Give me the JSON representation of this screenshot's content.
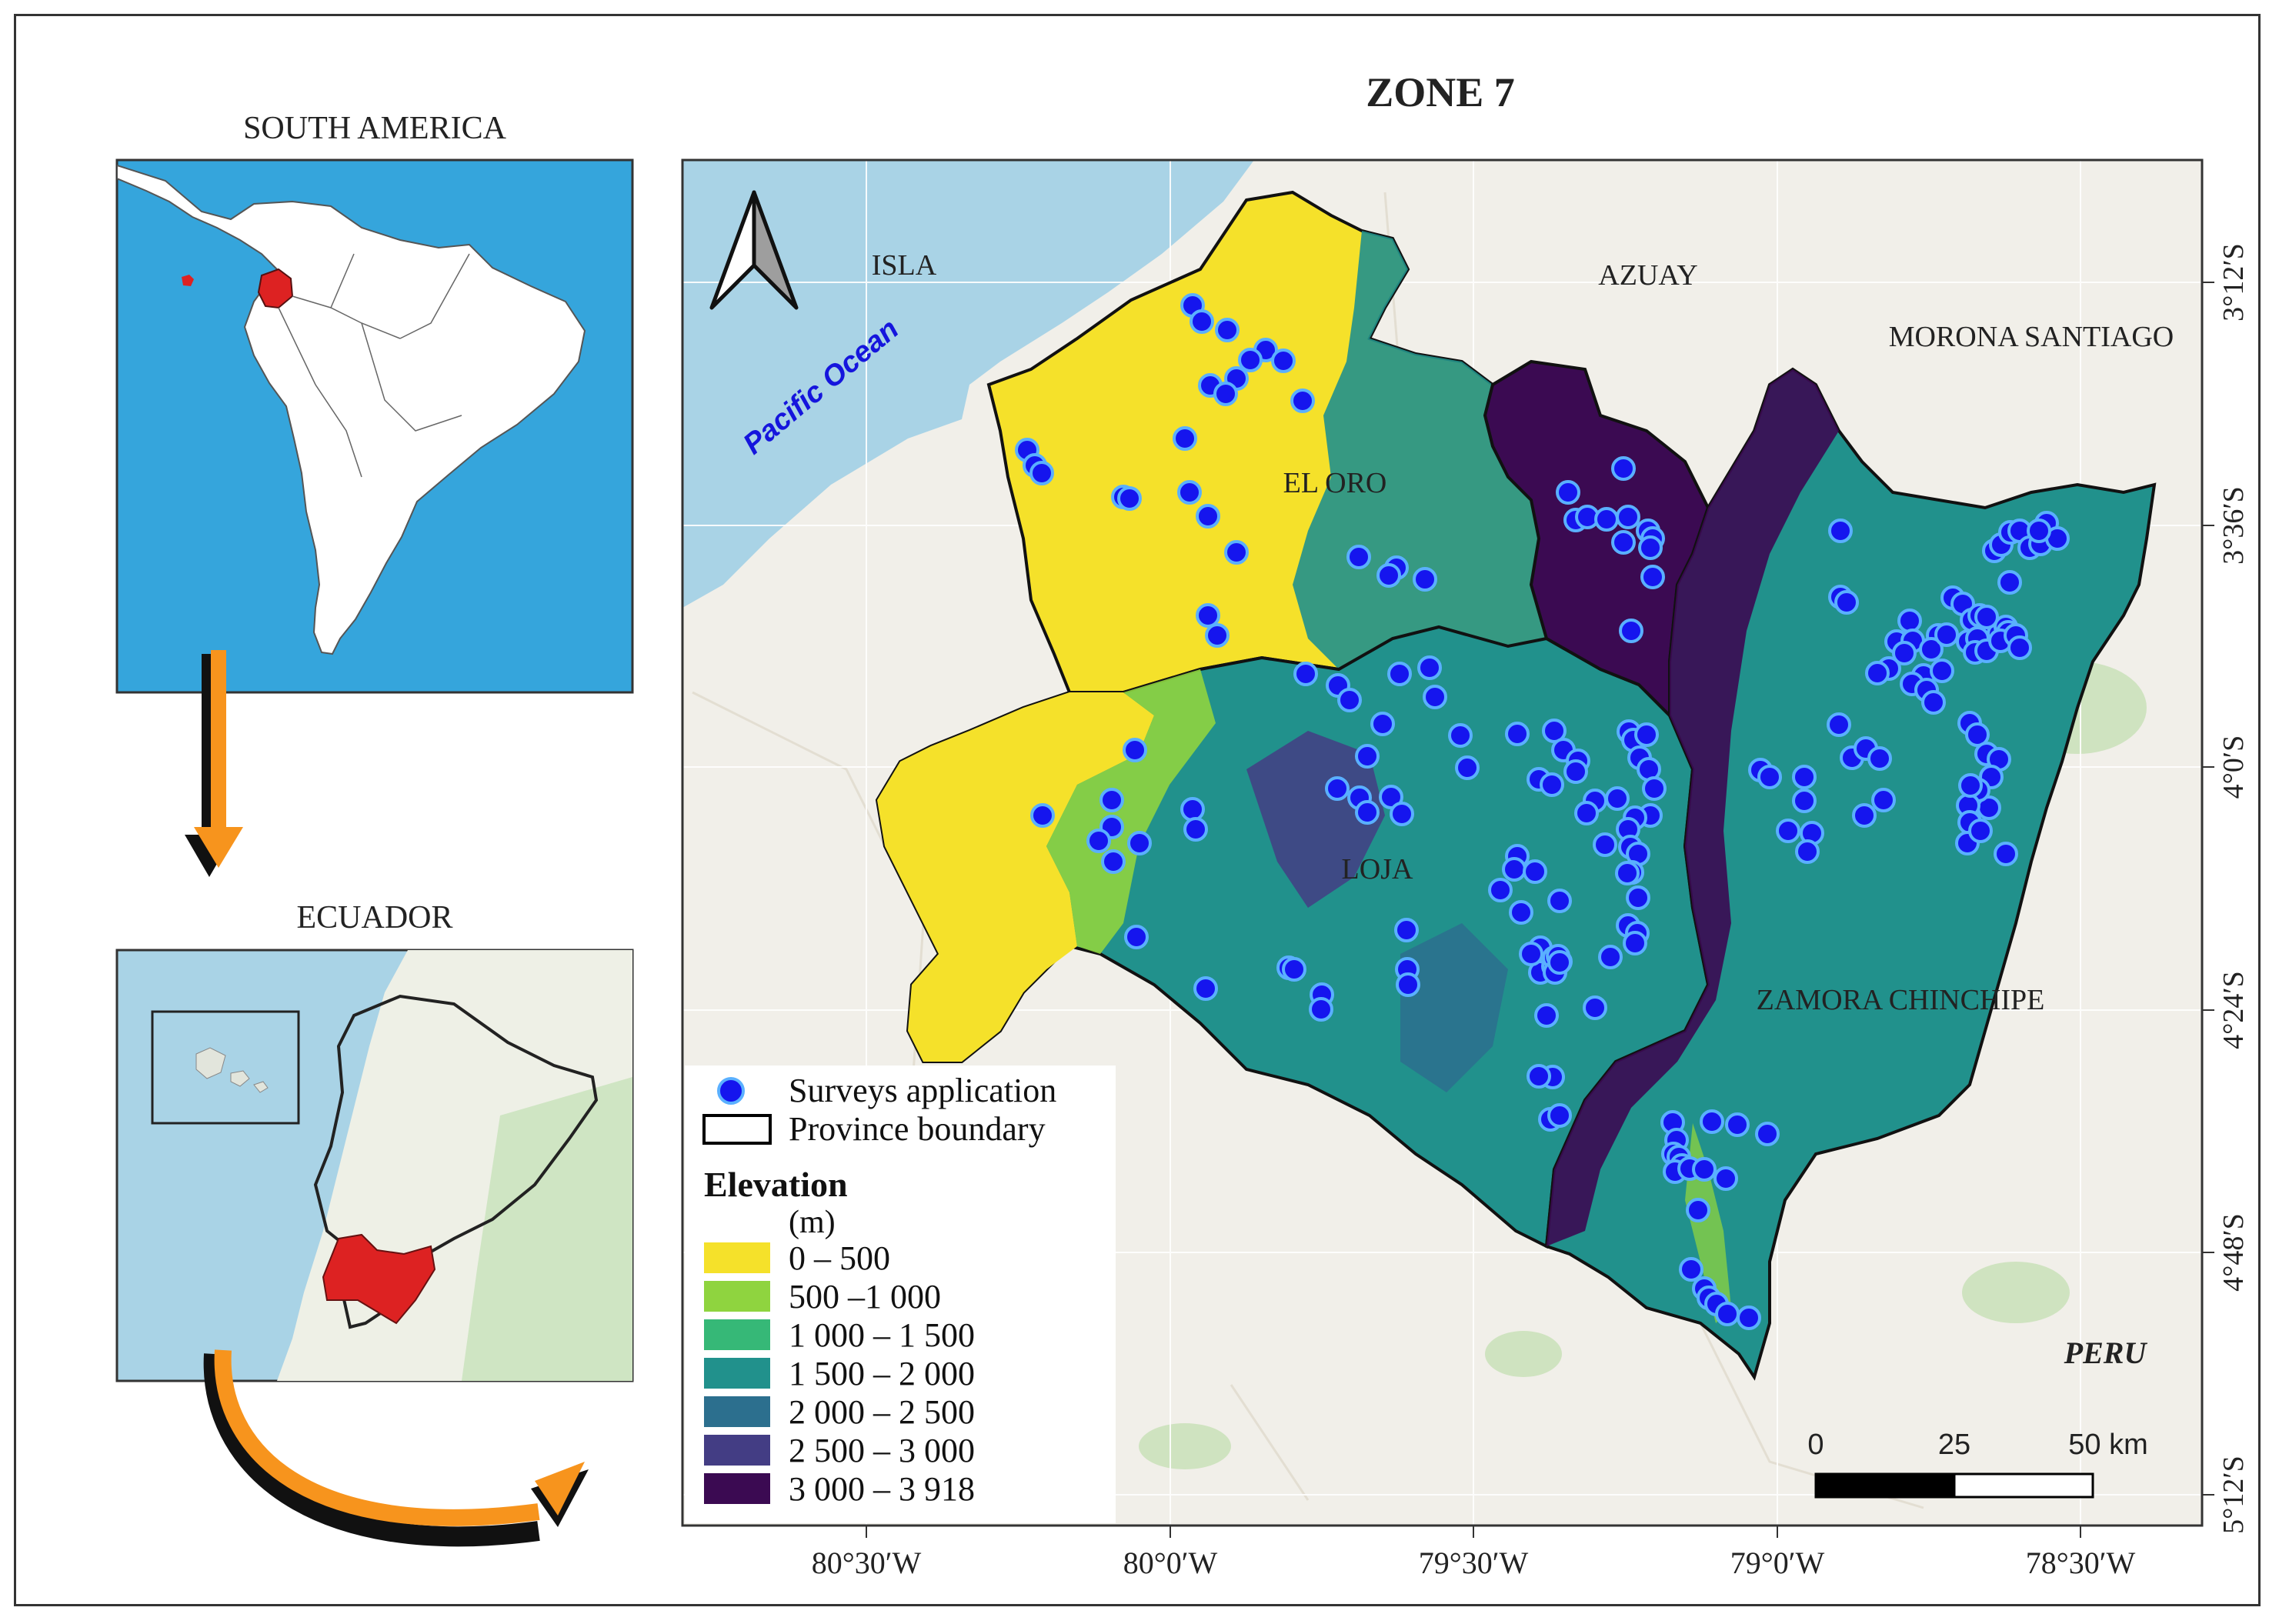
{
  "title": "ZONE 7",
  "inset_south_america": {
    "title": "SOUTH AMERICA"
  },
  "inset_ecuador": {
    "title": "ECUADOR"
  },
  "map_labels": {
    "isla": "ISLA",
    "azuay": "AZUAY",
    "morona_santiago": "MORONA SANTIAGO",
    "el_oro": "EL ORO",
    "loja": "LOJA",
    "zamora_chinchipe": "ZAMORA CHINCHIPE",
    "peru": "PERU",
    "pacific_ocean": "Pacific Ocean"
  },
  "lat_ticks": [
    "3°12′S",
    "3°36′S",
    "4°0′S",
    "4°24′S",
    "4°48′S",
    "5°12′S"
  ],
  "lon_ticks": [
    "80°30′W",
    "80°0′W",
    "79°30′W",
    "79°0′W",
    "78°30′W"
  ],
  "scale_bar": {
    "labels": [
      "0",
      "25",
      "50 km"
    ]
  },
  "legend": {
    "surveys": "Surveys application",
    "province_boundary": "Province boundary",
    "elevation_title": "Elevation",
    "elevation_unit": "(m)",
    "classes": [
      {
        "label": "0 – 500",
        "color": "#f5e12a"
      },
      {
        "label": "500 –1 000",
        "color": "#8fd43f"
      },
      {
        "label": "1 000 – 1 500",
        "color": "#36b877"
      },
      {
        "label": "1 500 – 2 000",
        "color": "#21918c"
      },
      {
        "label": "2 000 – 2 500",
        "color": "#2c6f8e"
      },
      {
        "label": "2 500 – 3 000",
        "color": "#433d84"
      },
      {
        "label": "3 000 – 3 918",
        "color": "#3b0a52"
      }
    ]
  },
  "colors": {
    "ocean": "#a9d3e6",
    "land": "#f1efe9",
    "inset_ocean": "#35a5dc",
    "highlight_red": "#dd2222",
    "survey_point": "#1515ee",
    "arrow_orange": "#f7941d"
  }
}
